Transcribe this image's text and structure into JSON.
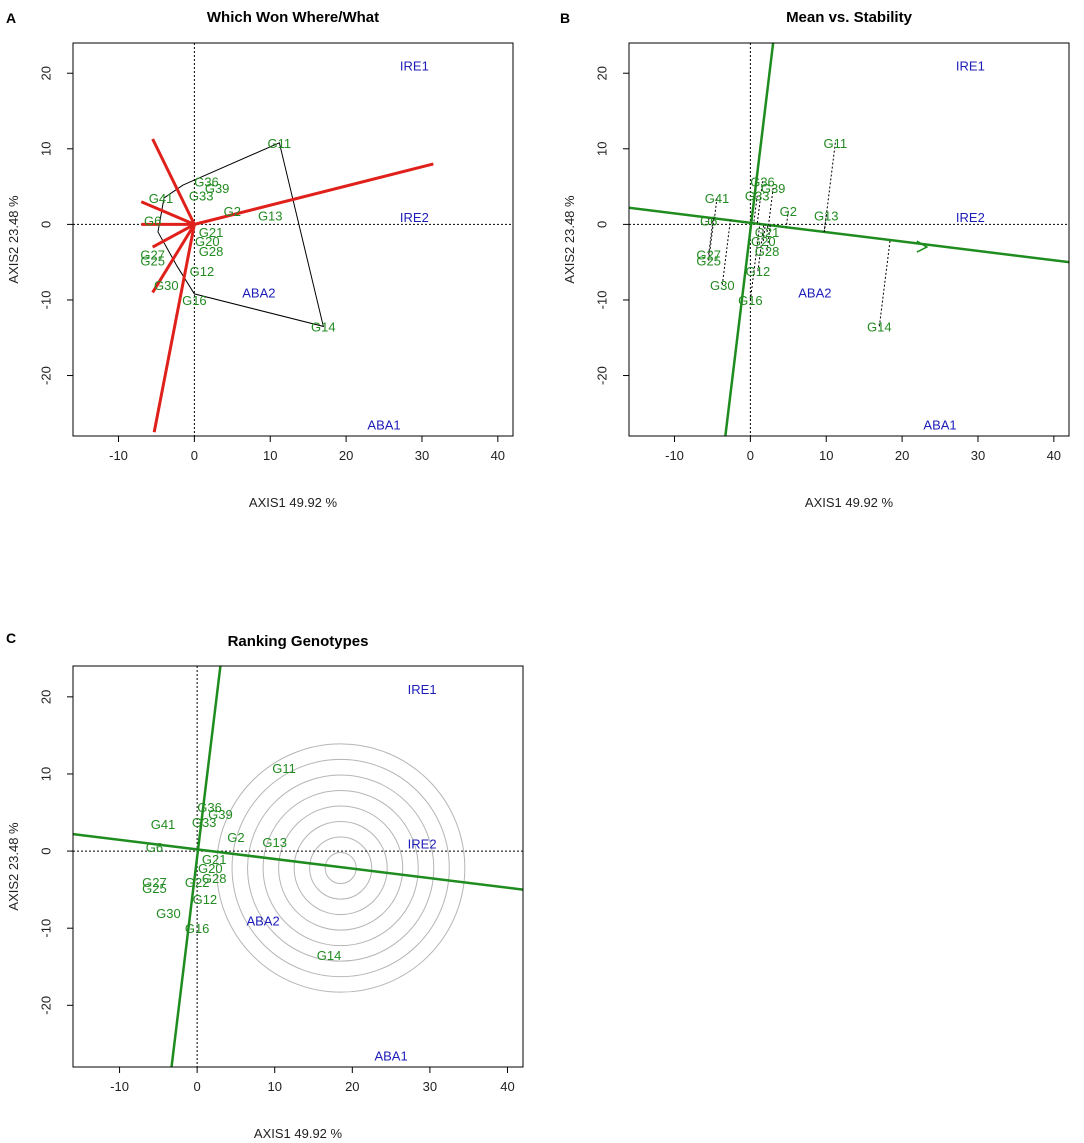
{
  "chart_data": [
    {
      "panel": "A",
      "type": "scatter",
      "title": "Which Won Where/What",
      "xlabel": "AXIS1 49.92 %",
      "ylabel": "AXIS2 23.48 %",
      "xlim": [
        -16,
        42
      ],
      "ylim": [
        -28,
        24
      ],
      "xticks": [
        -10,
        0,
        10,
        20,
        30,
        40
      ],
      "yticks": [
        -20,
        -10,
        0,
        10,
        20
      ],
      "genotype_color": "#228B22",
      "environment_color": "#1C1CB8",
      "line_color": "#E0201B",
      "environments": [
        {
          "name": "IRE1",
          "x": 29,
          "y": 21
        },
        {
          "name": "IRE2",
          "x": 29,
          "y": 1
        },
        {
          "name": "ABA2",
          "x": 8.5,
          "y": -9
        },
        {
          "name": "ABA1",
          "x": 25,
          "y": -26.5
        }
      ],
      "genotypes": [
        {
          "name": "G11",
          "x": 11.2,
          "y": 10.8
        },
        {
          "name": "G13",
          "x": 10,
          "y": 1.2
        },
        {
          "name": "G14",
          "x": 17,
          "y": -13.5
        },
        {
          "name": "G16",
          "x": 0,
          "y": -10
        },
        {
          "name": "G30",
          "x": -3.7,
          "y": -8
        },
        {
          "name": "G12",
          "x": 1,
          "y": -6.2
        },
        {
          "name": "G25",
          "x": -5.5,
          "y": -4.8
        },
        {
          "name": "G28",
          "x": 2.2,
          "y": -3.5
        },
        {
          "name": "G20",
          "x": 1.7,
          "y": -2.2
        },
        {
          "name": "G21",
          "x": 2.2,
          "y": -1
        },
        {
          "name": "G2",
          "x": 5,
          "y": 1.8
        },
        {
          "name": "G36",
          "x": 1.6,
          "y": 5.7
        },
        {
          "name": "G39",
          "x": 3,
          "y": 4.8
        },
        {
          "name": "G33",
          "x": 0.9,
          "y": 3.8
        },
        {
          "name": "G41",
          "x": -4.4,
          "y": 3.5
        },
        {
          "name": "G6",
          "x": -5.5,
          "y": 0.5
        },
        {
          "name": "G27",
          "x": -5.5,
          "y": -4
        }
      ],
      "hull_vertices": [
        "G11",
        "G14",
        "G16",
        "hull-upper-left"
      ],
      "rays": [
        [
          -5.5,
          11.3
        ],
        [
          31.5,
          8
        ],
        [
          -5.3,
          -27.5
        ],
        [
          -5.5,
          -9
        ],
        [
          -7,
          0
        ],
        [
          -7,
          3
        ],
        [
          -5.5,
          -3
        ]
      ],
      "origin_marks": [
        [
          0,
          0
        ]
      ]
    },
    {
      "panel": "B",
      "type": "scatter",
      "title": "Mean vs. Stability",
      "xlabel": "AXIS1 49.92 %",
      "ylabel": "AXIS2 23.48 %",
      "xlim": [
        -16,
        42
      ],
      "ylim": [
        -28,
        24
      ],
      "xticks": [
        -10,
        0,
        10,
        20,
        30,
        40
      ],
      "yticks": [
        -20,
        -10,
        0,
        10,
        20
      ],
      "genotype_color": "#228B22",
      "environment_color": "#1C1CB8",
      "line_color": "#1E8C1E",
      "environments": [
        {
          "name": "IRE1",
          "x": 29,
          "y": 21
        },
        {
          "name": "IRE2",
          "x": 29,
          "y": 1
        },
        {
          "name": "ABA2",
          "x": 8.5,
          "y": -9
        },
        {
          "name": "ABA1",
          "x": 25,
          "y": -26.5
        }
      ],
      "genotypes": [
        {
          "name": "G11",
          "x": 11.2,
          "y": 10.8
        },
        {
          "name": "G13",
          "x": 10,
          "y": 1.2
        },
        {
          "name": "G14",
          "x": 17,
          "y": -13.5
        },
        {
          "name": "G16",
          "x": 0,
          "y": -10
        },
        {
          "name": "G30",
          "x": -3.7,
          "y": -8
        },
        {
          "name": "G12",
          "x": 1,
          "y": -6.2
        },
        {
          "name": "G25",
          "x": -5.5,
          "y": -4.8
        },
        {
          "name": "G28",
          "x": 2.2,
          "y": -3.5
        },
        {
          "name": "G20",
          "x": 1.7,
          "y": -2.2
        },
        {
          "name": "G21",
          "x": 2.2,
          "y": -1
        },
        {
          "name": "G2",
          "x": 5,
          "y": 1.8
        },
        {
          "name": "G36",
          "x": 1.6,
          "y": 5.7
        },
        {
          "name": "G39",
          "x": 3,
          "y": 4.8
        },
        {
          "name": "G33",
          "x": 0.9,
          "y": 3.8
        },
        {
          "name": "G41",
          "x": -4.4,
          "y": 3.5
        },
        {
          "name": "G6",
          "x": -5.5,
          "y": 0.5
        },
        {
          "name": "G27",
          "x": -5.5,
          "y": -4
        }
      ],
      "aec_abscissa": [
        [
          -16,
          2.2
        ],
        [
          42,
          -5
        ]
      ],
      "aec_ordinate": [
        [
          -3.3,
          -28
        ],
        [
          3,
          24
        ]
      ],
      "arrow_at": [
        23,
        -3
      ]
    },
    {
      "panel": "C",
      "type": "scatter",
      "title": "Ranking Genotypes",
      "xlabel": "AXIS1 49.92 %",
      "ylabel": "AXIS2 23.48 %",
      "xlim": [
        -16,
        42
      ],
      "ylim": [
        -28,
        24
      ],
      "xticks": [
        -10,
        0,
        10,
        20,
        30,
        40
      ],
      "yticks": [
        -20,
        -10,
        0,
        10,
        20
      ],
      "genotype_color": "#228B22",
      "environment_color": "#1C1CB8",
      "line_color": "#1E8C1E",
      "circle_color": "#B5B5B5",
      "environments": [
        {
          "name": "IRE1",
          "x": 29,
          "y": 21
        },
        {
          "name": "IRE2",
          "x": 29,
          "y": 1
        },
        {
          "name": "ABA2",
          "x": 8.5,
          "y": -9
        },
        {
          "name": "ABA1",
          "x": 25,
          "y": -26.5
        }
      ],
      "genotypes": [
        {
          "name": "G11",
          "x": 11.2,
          "y": 10.8
        },
        {
          "name": "G13",
          "x": 10,
          "y": 1.2
        },
        {
          "name": "G14",
          "x": 17,
          "y": -13.5
        },
        {
          "name": "G16",
          "x": 0,
          "y": -10
        },
        {
          "name": "G30",
          "x": -3.7,
          "y": -8
        },
        {
          "name": "G12",
          "x": 1,
          "y": -6.2
        },
        {
          "name": "G25",
          "x": -5.5,
          "y": -4.8
        },
        {
          "name": "G28",
          "x": 2.2,
          "y": -3.5
        },
        {
          "name": "G20",
          "x": 1.7,
          "y": -2.2
        },
        {
          "name": "G21",
          "x": 2.2,
          "y": -1
        },
        {
          "name": "G2",
          "x": 5,
          "y": 1.8
        },
        {
          "name": "G36",
          "x": 1.6,
          "y": 5.7
        },
        {
          "name": "G39",
          "x": 3,
          "y": 4.8
        },
        {
          "name": "G33",
          "x": 0.9,
          "y": 3.8
        },
        {
          "name": "G41",
          "x": -4.4,
          "y": 3.5
        },
        {
          "name": "G6",
          "x": -5.5,
          "y": 0.5
        },
        {
          "name": "G27",
          "x": -5.5,
          "y": -4
        },
        {
          "name": "G22",
          "x": 0,
          "y": -4
        }
      ],
      "aec_abscissa": [
        [
          -16,
          2.2
        ],
        [
          42,
          -5
        ]
      ],
      "aec_ordinate": [
        [
          -3.3,
          -28
        ],
        [
          3,
          24
        ]
      ],
      "ideal_center": [
        18.5,
        -2.2
      ],
      "circle_radii": [
        2,
        4,
        6,
        8,
        10,
        12,
        14,
        16
      ]
    }
  ]
}
